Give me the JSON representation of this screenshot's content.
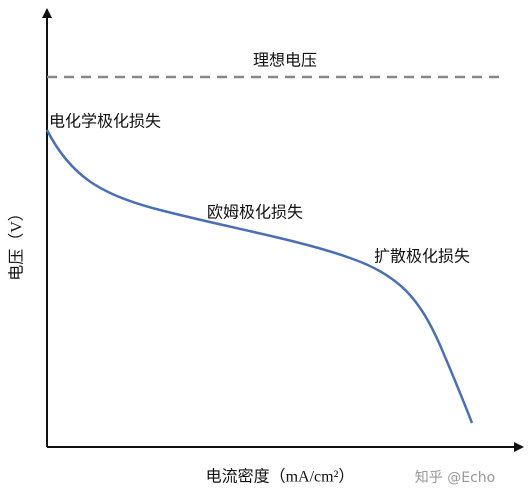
{
  "ideal_voltage": "理想电压",
  "regions": {
    "activation": "电化学极化损失",
    "ohmic": "欧姆极化损失",
    "concentration": "扩散极化损失"
  },
  "axes": {
    "y_label": "电压（V）",
    "x_label": "电流密度（mA/cm²）"
  },
  "watermark": "知乎 @Echo"
}
